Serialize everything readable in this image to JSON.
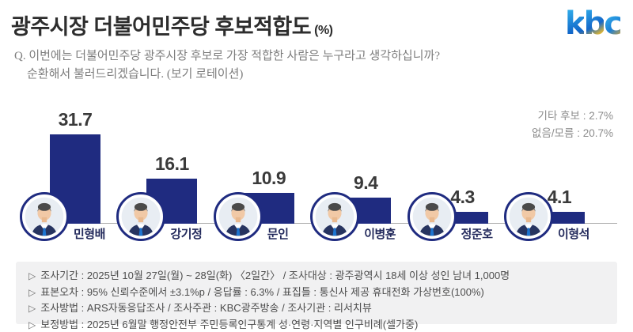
{
  "header": {
    "title": "광주시장 더불어민주당 후보적합도",
    "unit": "(%)"
  },
  "logo": {
    "name": "kbc",
    "letters": [
      "k",
      "b",
      "c"
    ],
    "blue": "#1a7fd6",
    "orange": "#f5a81c"
  },
  "question": {
    "line1": "Q. 이번에는 더불어민주당 광주시장 후보로 가장 적합한 사람은 누구라고 생각하십니까?",
    "line2": "순환해서 불러드리겠습니다. (보기 로테이션)"
  },
  "chart_data": {
    "type": "bar",
    "title": "광주시장 더불어민주당 후보적합도 (%)",
    "categories": [
      "민형배",
      "강기정",
      "문인",
      "이병훈",
      "정준호",
      "이형석"
    ],
    "values": [
      31.7,
      16.1,
      10.9,
      9.4,
      4.3,
      4.1
    ],
    "value_labels": [
      "31.7",
      "16.1",
      "10.9",
      "9.4",
      "4.3",
      "4.1"
    ],
    "annotations": [
      "기타 후보 : 2.7%",
      "없음/모름 : 20.7%"
    ],
    "bar_color": "#1F2B80",
    "name_color": "#232A5C",
    "ylim": [
      0,
      35
    ],
    "grid": false,
    "legend": false
  },
  "footnotes": {
    "bullet": "▷",
    "lines": [
      "조사기간 : 2025년 10월 27일(월) ~ 28일(화) 〈2일간〉 / 조사대상 : 광주광역시 18세 이상 성인 남녀 1,000명",
      "표본오차 : 95% 신뢰수준에서 ±3.1%p / 응답률 : 6.3% / 표집틀 : 통신사 제공 휴대전화 가상번호(100%)",
      "조사방법 : ARS자동응답조사 / 조사주관 : KBC광주방송 / 조사기관 : 리서치뷰",
      "보정방법 : 2025년 6월말 행정안전부 주민등록인구통계 성·연령·지역별 인구비례(셀가중)"
    ]
  }
}
